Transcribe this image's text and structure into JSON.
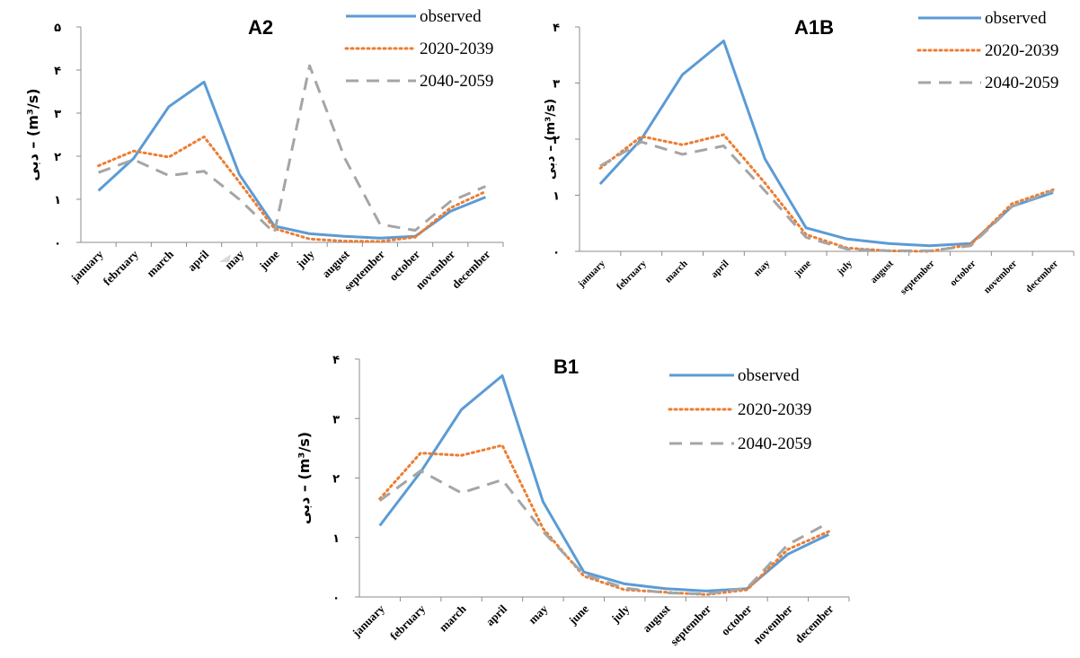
{
  "colors": {
    "observed": "#5b9bd5",
    "p2020": "#ed7d31",
    "p2040": "#a5a5a5"
  },
  "chart_data": [
    {
      "type": "line",
      "title": "A2",
      "ylabel": "دبی – (m³/s)",
      "ylim": [
        0,
        5
      ],
      "yticks": [
        "۰",
        "۱",
        "۲",
        "۳",
        "۴",
        "۵"
      ],
      "categories": [
        "january",
        "february",
        "march",
        "april",
        "may",
        "june",
        "july",
        "august",
        "september",
        "october",
        "november",
        "december"
      ],
      "legend_position": "top-right",
      "series": [
        {
          "name": "observed",
          "values": [
            1.2,
            1.95,
            3.15,
            3.72,
            1.58,
            0.38,
            0.2,
            0.14,
            0.1,
            0.14,
            0.72,
            1.05
          ]
        },
        {
          "name": "2020-2039",
          "values": [
            1.78,
            2.12,
            1.98,
            2.45,
            1.4,
            0.32,
            0.08,
            0.03,
            0.02,
            0.12,
            0.8,
            1.18
          ]
        },
        {
          "name": "2040-2059",
          "values": [
            1.62,
            1.92,
            1.55,
            1.65,
            1.0,
            0.22,
            4.1,
            1.95,
            0.42,
            0.28,
            0.95,
            1.3
          ]
        }
      ]
    },
    {
      "type": "line",
      "title": "A1B",
      "ylabel": "دبی – (m³/s)",
      "ylim": [
        0,
        4
      ],
      "yticks": [
        "۰",
        "۱",
        "۲",
        "۳",
        "۴"
      ],
      "categories": [
        "january",
        "february",
        "march",
        "april",
        "may",
        "june",
        "july",
        "august",
        "september",
        "october",
        "november",
        "december"
      ],
      "legend_position": "top-right",
      "series": [
        {
          "name": "observed",
          "values": [
            1.2,
            2.0,
            3.15,
            3.75,
            1.65,
            0.42,
            0.22,
            0.14,
            0.1,
            0.14,
            0.8,
            1.05
          ]
        },
        {
          "name": "2020-2039",
          "values": [
            1.48,
            2.05,
            1.9,
            2.08,
            1.22,
            0.3,
            0.06,
            0.01,
            0.0,
            0.12,
            0.85,
            1.1
          ]
        },
        {
          "name": "2040-2059",
          "values": [
            1.52,
            1.95,
            1.73,
            1.88,
            1.08,
            0.25,
            0.04,
            0.01,
            0.01,
            0.1,
            0.8,
            1.08
          ]
        }
      ]
    },
    {
      "type": "line",
      "title": "B1",
      "ylabel": "دبی – (m³/s)",
      "ylim": [
        0,
        4
      ],
      "yticks": [
        "۰",
        "۱",
        "۲",
        "۳",
        "۴"
      ],
      "categories": [
        "january",
        "february",
        "march",
        "april",
        "may",
        "june",
        "july",
        "august",
        "september",
        "october",
        "november",
        "december"
      ],
      "legend_position": "top-right",
      "series": [
        {
          "name": "observed",
          "values": [
            1.2,
            2.1,
            3.15,
            3.72,
            1.6,
            0.42,
            0.22,
            0.14,
            0.1,
            0.14,
            0.72,
            1.05
          ]
        },
        {
          "name": "2020-2039",
          "values": [
            1.65,
            2.42,
            2.38,
            2.55,
            1.15,
            0.35,
            0.12,
            0.08,
            0.04,
            0.12,
            0.8,
            1.1
          ]
        },
        {
          "name": "2040-2059",
          "values": [
            1.62,
            2.12,
            1.75,
            1.97,
            1.1,
            0.38,
            0.15,
            0.07,
            0.05,
            0.15,
            0.88,
            1.25
          ]
        }
      ]
    }
  ]
}
